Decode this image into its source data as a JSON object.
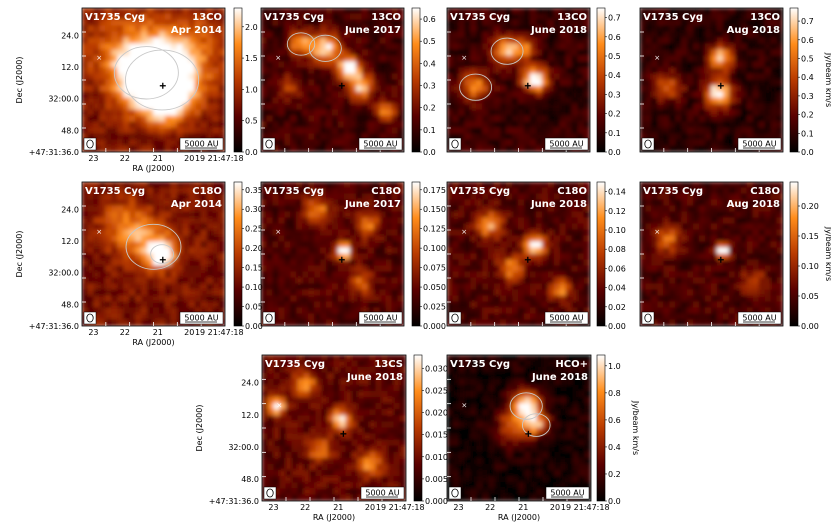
{
  "chart_data": [
    {
      "type": "heatmap",
      "name": "V1735 Cyg",
      "molecule": "13CO",
      "epoch": "Apr 2014",
      "colorbar_ticks": [
        "0.0",
        "0.5",
        "1.0",
        "1.5",
        "2.0"
      ],
      "colorbar_values": [
        0,
        0.5,
        1.0,
        1.5,
        2.0
      ],
      "colorbar_range": [
        0,
        2.3
      ],
      "cbar_label": "",
      "scalebar": "5000 AU",
      "ra_ticks": [
        "23",
        "22",
        "21",
        "20",
        "19 21:47:18"
      ],
      "dec_ticks": [
        "24.0",
        "12.0",
        "32:00.0",
        "48.0",
        "+47:31:36.0"
      ],
      "xlabel": "RA (J2000)",
      "ylabel": "Dec (J2000)",
      "peaks": [
        {
          "x": 0.56,
          "y": 0.5,
          "s": 0.16,
          "a": 1.0
        },
        {
          "x": 0.45,
          "y": 0.45,
          "s": 0.14,
          "a": 0.6
        },
        {
          "x": 0.6,
          "y": 0.62,
          "s": 0.12,
          "a": 0.5
        },
        {
          "x": 0.3,
          "y": 0.3,
          "s": 0.2,
          "a": 0.3
        },
        {
          "x": 0.75,
          "y": 0.3,
          "s": 0.18,
          "a": 0.3
        }
      ],
      "background": 0.32,
      "contours": true
    },
    {
      "type": "heatmap",
      "name": "V1735 Cyg",
      "molecule": "13CO",
      "epoch": "June 2017",
      "colorbar_ticks": [
        "0.0",
        "0.1",
        "0.2",
        "0.3",
        "0.4",
        "0.5",
        "0.6"
      ],
      "colorbar_values": [
        0,
        0.1,
        0.2,
        0.3,
        0.4,
        0.5,
        0.6
      ],
      "colorbar_range": [
        0,
        0.65
      ],
      "cbar_label": "",
      "scalebar": "5000 AU",
      "ra_ticks": [],
      "dec_ticks": [],
      "xlabel": "",
      "ylabel": "",
      "peaks": [
        {
          "x": 0.45,
          "y": 0.28,
          "s": 0.07,
          "a": 0.8
        },
        {
          "x": 0.28,
          "y": 0.25,
          "s": 0.06,
          "a": 0.6
        },
        {
          "x": 0.62,
          "y": 0.42,
          "s": 0.06,
          "a": 0.9
        },
        {
          "x": 0.7,
          "y": 0.55,
          "s": 0.06,
          "a": 0.7
        },
        {
          "x": 0.88,
          "y": 0.72,
          "s": 0.05,
          "a": 0.6
        },
        {
          "x": 0.2,
          "y": 0.55,
          "s": 0.06,
          "a": 0.35
        }
      ],
      "background": 0.18,
      "contours": true
    },
    {
      "type": "heatmap",
      "name": "V1735 Cyg",
      "molecule": "13CO",
      "epoch": "June 2018",
      "colorbar_ticks": [
        "0.0",
        "0.1",
        "0.2",
        "0.3",
        "0.4",
        "0.5",
        "0.6",
        "0.7"
      ],
      "colorbar_values": [
        0,
        0.1,
        0.2,
        0.3,
        0.4,
        0.5,
        0.6,
        0.7
      ],
      "colorbar_range": [
        0,
        0.75
      ],
      "cbar_label": "",
      "scalebar": "5000 AU",
      "ra_ticks": [],
      "dec_ticks": [],
      "xlabel": "",
      "ylabel": "",
      "peaks": [
        {
          "x": 0.42,
          "y": 0.3,
          "s": 0.07,
          "a": 0.7
        },
        {
          "x": 0.2,
          "y": 0.55,
          "s": 0.07,
          "a": 0.6
        },
        {
          "x": 0.62,
          "y": 0.5,
          "s": 0.06,
          "a": 1.0
        },
        {
          "x": 0.55,
          "y": 0.28,
          "s": 0.05,
          "a": 0.5
        }
      ],
      "background": 0.15,
      "contours": true
    },
    {
      "type": "heatmap",
      "name": "V1735 Cyg",
      "molecule": "13CO",
      "epoch": "Aug 2018",
      "colorbar_ticks": [
        "0.0",
        "0.1",
        "0.2",
        "0.3",
        "0.4",
        "0.5",
        "0.6",
        "0.7"
      ],
      "colorbar_values": [
        0,
        0.1,
        0.2,
        0.3,
        0.4,
        0.5,
        0.6,
        0.7
      ],
      "colorbar_range": [
        0,
        0.77
      ],
      "cbar_label": "Jy/beam km/s",
      "scalebar": "5000 AU",
      "ra_ticks": [],
      "dec_ticks": [],
      "xlabel": "",
      "ylabel": "",
      "peaks": [
        {
          "x": 0.57,
          "y": 0.35,
          "s": 0.06,
          "a": 0.8
        },
        {
          "x": 0.55,
          "y": 0.6,
          "s": 0.07,
          "a": 0.9
        },
        {
          "x": 0.2,
          "y": 0.55,
          "s": 0.07,
          "a": 0.5
        }
      ],
      "background": 0.12,
      "contours": false
    },
    {
      "type": "heatmap",
      "name": "V1735 Cyg",
      "molecule": "C18O",
      "epoch": "Apr 2014",
      "colorbar_ticks": [
        "0.00",
        "0.05",
        "0.10",
        "0.15",
        "0.20",
        "0.25",
        "0.30",
        "0.35"
      ],
      "colorbar_values": [
        0,
        0.05,
        0.1,
        0.15,
        0.2,
        0.25,
        0.3,
        0.35
      ],
      "colorbar_range": [
        0,
        0.37
      ],
      "cbar_label": "",
      "scalebar": "5000 AU",
      "ra_ticks": [
        "23",
        "22",
        "21",
        "20",
        "19 21:47:18"
      ],
      "dec_ticks": [
        "24.0",
        "12.0",
        "32:00.0",
        "48.0",
        "+47:31:36.0"
      ],
      "xlabel": "RA (J2000)",
      "ylabel": "Dec (J2000)",
      "peaks": [
        {
          "x": 0.56,
          "y": 0.5,
          "s": 0.05,
          "a": 1.0
        },
        {
          "x": 0.5,
          "y": 0.45,
          "s": 0.12,
          "a": 0.45
        },
        {
          "x": 0.3,
          "y": 0.3,
          "s": 0.12,
          "a": 0.35
        }
      ],
      "background": 0.32,
      "contours": true
    },
    {
      "type": "heatmap",
      "name": "V1735 Cyg",
      "molecule": "C18O",
      "epoch": "June 2017",
      "colorbar_ticks": [
        "0.000",
        "0.025",
        "0.050",
        "0.075",
        "0.100",
        "0.125",
        "0.150",
        "0.175"
      ],
      "colorbar_values": [
        0,
        0.025,
        0.05,
        0.075,
        0.1,
        0.125,
        0.15,
        0.175
      ],
      "colorbar_range": [
        0,
        0.185
      ],
      "cbar_label": "",
      "scalebar": "5000 AU",
      "ra_ticks": [],
      "dec_ticks": [],
      "xlabel": "",
      "ylabel": "",
      "peaks": [
        {
          "x": 0.58,
          "y": 0.48,
          "s": 0.04,
          "a": 1.0
        },
        {
          "x": 0.4,
          "y": 0.2,
          "s": 0.06,
          "a": 0.5
        },
        {
          "x": 0.75,
          "y": 0.3,
          "s": 0.06,
          "a": 0.5
        },
        {
          "x": 0.7,
          "y": 0.7,
          "s": 0.06,
          "a": 0.4
        }
      ],
      "background": 0.22,
      "contours": false
    },
    {
      "type": "heatmap",
      "name": "V1735 Cyg",
      "molecule": "C18O",
      "epoch": "June 2018",
      "colorbar_ticks": [
        "0.00",
        "0.02",
        "0.04",
        "0.06",
        "0.08",
        "0.10",
        "0.12",
        "0.14"
      ],
      "colorbar_values": [
        0,
        0.02,
        0.04,
        0.06,
        0.08,
        0.1,
        0.12,
        0.14
      ],
      "colorbar_range": [
        0,
        0.15
      ],
      "cbar_label": "",
      "scalebar": "5000 AU",
      "ra_ticks": [],
      "dec_ticks": [],
      "xlabel": "",
      "ylabel": "",
      "peaks": [
        {
          "x": 0.62,
          "y": 0.45,
          "s": 0.05,
          "a": 0.9
        },
        {
          "x": 0.3,
          "y": 0.3,
          "s": 0.06,
          "a": 0.6
        },
        {
          "x": 0.45,
          "y": 0.6,
          "s": 0.06,
          "a": 0.5
        },
        {
          "x": 0.8,
          "y": 0.75,
          "s": 0.05,
          "a": 0.5
        }
      ],
      "background": 0.22,
      "contours": false
    },
    {
      "type": "heatmap",
      "name": "V1735 Cyg",
      "molecule": "C18O",
      "epoch": "Aug 2018",
      "colorbar_ticks": [
        "0.00",
        "0.05",
        "0.10",
        "0.15",
        "0.20"
      ],
      "colorbar_values": [
        0,
        0.05,
        0.1,
        0.15,
        0.2
      ],
      "colorbar_range": [
        0,
        0.24
      ],
      "cbar_label": "Jy/beam km/s",
      "scalebar": "5000 AU",
      "ra_ticks": [],
      "dec_ticks": [],
      "xlabel": "",
      "ylabel": "",
      "peaks": [
        {
          "x": 0.58,
          "y": 0.48,
          "s": 0.035,
          "a": 1.0
        },
        {
          "x": 0.2,
          "y": 0.4,
          "s": 0.06,
          "a": 0.5
        },
        {
          "x": 0.8,
          "y": 0.7,
          "s": 0.06,
          "a": 0.35
        }
      ],
      "background": 0.2,
      "contours": false
    },
    {
      "type": "heatmap",
      "name": "V1735 Cyg",
      "molecule": "13CS",
      "epoch": "June 2018",
      "colorbar_ticks": [
        "0.000",
        "0.005",
        "0.010",
        "0.015",
        "0.020",
        "0.025",
        "0.030"
      ],
      "colorbar_values": [
        0,
        0.005,
        0.01,
        0.015,
        0.02,
        0.025,
        0.03
      ],
      "colorbar_range": [
        0,
        0.033
      ],
      "cbar_label": "",
      "scalebar": "5000 AU",
      "ra_ticks": [
        "23",
        "22",
        "21",
        "20",
        "19 21:47:18"
      ],
      "dec_ticks": [
        "24.0",
        "12.0",
        "32:00.0",
        "48.0",
        "+47:31:36.0"
      ],
      "xlabel": "RA (J2000)",
      "ylabel": "Dec (J2000)",
      "peaks": [
        {
          "x": 0.1,
          "y": 0.35,
          "s": 0.04,
          "a": 0.9
        },
        {
          "x": 0.55,
          "y": 0.45,
          "s": 0.05,
          "a": 0.7
        },
        {
          "x": 0.3,
          "y": 0.2,
          "s": 0.06,
          "a": 0.5
        },
        {
          "x": 0.75,
          "y": 0.75,
          "s": 0.06,
          "a": 0.5
        },
        {
          "x": 0.4,
          "y": 0.65,
          "s": 0.06,
          "a": 0.45
        }
      ],
      "background": 0.25,
      "contours": false
    },
    {
      "type": "heatmap",
      "name": "V1735 Cyg",
      "molecule": "HCO+",
      "epoch": "June 2018",
      "colorbar_ticks": [
        "0.0",
        "0.2",
        "0.4",
        "0.6",
        "0.8",
        "1.0"
      ],
      "colorbar_values": [
        0,
        0.2,
        0.4,
        0.6,
        0.8,
        1.0
      ],
      "colorbar_range": [
        0,
        1.08
      ],
      "cbar_label": "Jy/beam km/s",
      "scalebar": "5000 AU",
      "ra_ticks": [
        "23",
        "22",
        "21",
        "20",
        "19 21:47:18"
      ],
      "dec_ticks": [],
      "xlabel": "RA (J2000)",
      "ylabel": "",
      "peaks": [
        {
          "x": 0.55,
          "y": 0.35,
          "s": 0.07,
          "a": 1.0
        },
        {
          "x": 0.62,
          "y": 0.48,
          "s": 0.06,
          "a": 0.7
        },
        {
          "x": 0.45,
          "y": 0.5,
          "s": 0.08,
          "a": 0.5
        }
      ],
      "background": 0.06,
      "contours": true
    }
  ]
}
